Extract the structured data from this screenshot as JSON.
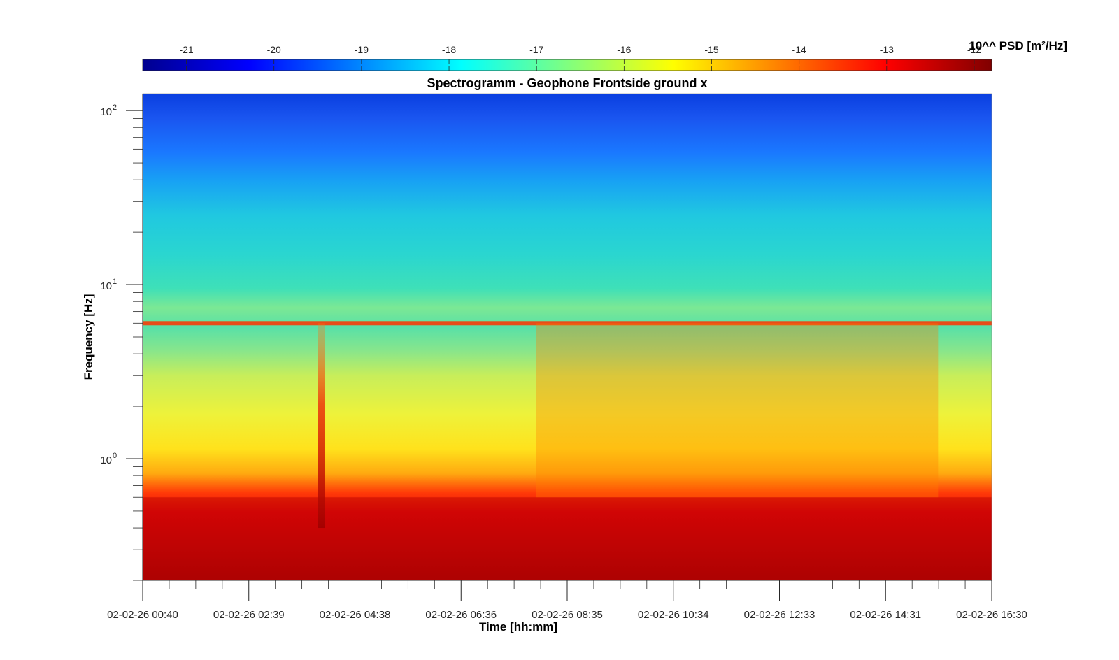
{
  "chart_data": {
    "type": "heatmap",
    "title": "Spectrogramm - Geophone Frontside ground x",
    "xlabel": "Time [hh:mm]",
    "ylabel": "Frequency [Hz]",
    "yscale": "log",
    "ylim": [
      0.2,
      125
    ],
    "xlim": [
      "02-02-26 00:40",
      "02-02-26 16:30"
    ],
    "x_tick_labels": [
      "02-02-26 00:40",
      "02-02-26 02:39",
      "02-02-26 04:38",
      "02-02-26 06:36",
      "02-02-26 08:35",
      "02-02-26 10:34",
      "02-02-26 12:33",
      "02-02-26 14:31",
      "02-02-26 16:30"
    ],
    "y_ticks": [
      {
        "value": 1,
        "base": "10",
        "exp": "0"
      },
      {
        "value": 10,
        "base": "10",
        "exp": "1"
      },
      {
        "value": 100,
        "base": "10",
        "exp": "2"
      }
    ],
    "colorbar": {
      "label": "10^^ PSD [m²/Hz]",
      "location": "top",
      "colormap": "jet",
      "range": [
        -21.5,
        -11.8
      ],
      "tick_values": [
        -21,
        -20,
        -19,
        -18,
        -17,
        -16,
        -15,
        -14,
        -13,
        -12
      ],
      "tick_labels": [
        "-21",
        "-20",
        "-19",
        "-18",
        "-17",
        "-16",
        "-15",
        "-14",
        "-13",
        "-12"
      ]
    },
    "features": [
      {
        "feature": "persistent spectral line",
        "frequency_hz": 6.0,
        "level": -13.5
      },
      {
        "feature": "low-frequency band",
        "frequency_range_hz": [
          0.2,
          0.6
        ],
        "level": -12.3
      },
      {
        "feature": "broadband transient",
        "time": "02-02-26 04:00",
        "frequency_range_hz": [
          0.4,
          6
        ],
        "level": -12.5
      },
      {
        "feature": "elevated activity",
        "time_range": [
          "02-02-26 08:00",
          "02-02-26 15:30"
        ],
        "frequency_range_hz": [
          0.6,
          6
        ],
        "level": -14.2
      }
    ]
  }
}
